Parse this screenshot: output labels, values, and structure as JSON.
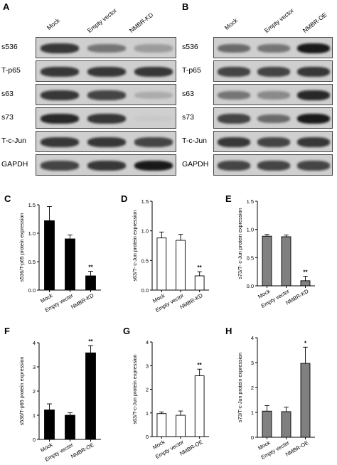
{
  "panels_top": {
    "A": {
      "letter": "A",
      "lanes": [
        "Mock",
        "Empty vector",
        "NMBR-KD"
      ],
      "rows": [
        {
          "label": "s536",
          "bands": [
            0.85,
            0.6,
            0.4
          ]
        },
        {
          "label": "T-p65",
          "bands": [
            0.85,
            0.85,
            0.85
          ]
        },
        {
          "label": "s63",
          "bands": [
            0.85,
            0.8,
            0.3
          ]
        },
        {
          "label": "s73",
          "bands": [
            0.9,
            0.85,
            0.05
          ]
        },
        {
          "label": "T-c-Jun",
          "bands": [
            0.85,
            0.85,
            0.8
          ]
        },
        {
          "label": "GAPDH",
          "bands": [
            0.8,
            0.85,
            0.95
          ]
        }
      ]
    },
    "B": {
      "letter": "B",
      "lanes": [
        "Mock",
        "Empty vector",
        "NMBR-OE"
      ],
      "rows": [
        {
          "label": "s536",
          "bands": [
            0.65,
            0.6,
            0.95
          ]
        },
        {
          "label": "T-p65",
          "bands": [
            0.8,
            0.8,
            0.85
          ]
        },
        {
          "label": "s63",
          "bands": [
            0.6,
            0.5,
            0.9
          ]
        },
        {
          "label": "s73",
          "bands": [
            0.8,
            0.65,
            0.95
          ]
        },
        {
          "label": "T-c-Jun",
          "bands": [
            0.85,
            0.8,
            0.85
          ]
        },
        {
          "label": "GAPDH",
          "bands": [
            0.8,
            0.8,
            0.8
          ]
        }
      ]
    }
  },
  "chart_data": [
    {
      "panel": "C",
      "type": "bar",
      "categories": [
        "Mock",
        "Empty vector",
        "NMBR-KD"
      ],
      "values": [
        1.22,
        0.9,
        0.25
      ],
      "errors": [
        0.25,
        0.07,
        0.08
      ],
      "sig": [
        "",
        "",
        "**"
      ],
      "ylabel": "s536/T-p65 protein expression",
      "ylim": [
        0,
        1.5
      ],
      "yticks": [
        "0.0",
        "0.5",
        "1.0",
        "1.5"
      ],
      "fill": "#000000"
    },
    {
      "panel": "D",
      "type": "bar",
      "categories": [
        "Mock",
        "Empty vector",
        "NMBR-KD"
      ],
      "values": [
        0.88,
        0.84,
        0.24
      ],
      "errors": [
        0.1,
        0.1,
        0.07
      ],
      "sig": [
        "",
        "",
        "**"
      ],
      "ylabel": "s63/T- c-Jun protein expression",
      "ylim": [
        0,
        1.5
      ],
      "yticks": [
        "0.0",
        "0.5",
        "1.0",
        "1.5"
      ],
      "fill": "#ffffff"
    },
    {
      "panel": "E",
      "type": "bar",
      "categories": [
        "Mock",
        "Empty vector",
        "NMBR-KD"
      ],
      "values": [
        0.88,
        0.87,
        0.09
      ],
      "errors": [
        0.03,
        0.03,
        0.08
      ],
      "sig": [
        "",
        "",
        "**"
      ],
      "ylabel": "s73/T- c-Jun protein expression",
      "ylim": [
        0,
        1.5
      ],
      "yticks": [
        "0.0",
        "0.5",
        "1.0",
        "1.5"
      ],
      "fill": "#808080"
    },
    {
      "panel": "F",
      "type": "bar",
      "categories": [
        "Mock",
        "Empty vector",
        "NMBR-OE"
      ],
      "values": [
        1.22,
        1.0,
        3.58
      ],
      "errors": [
        0.25,
        0.1,
        0.3
      ],
      "sig": [
        "",
        "",
        "**"
      ],
      "ylabel": "s536/T-p65 protein expression",
      "ylim": [
        0,
        4
      ],
      "yticks": [
        "0",
        "1",
        "2",
        "3",
        "4"
      ],
      "fill": "#000000"
    },
    {
      "panel": "G",
      "type": "bar",
      "categories": [
        "Mock",
        "Empty vector",
        "NMBR-OE"
      ],
      "values": [
        0.97,
        0.9,
        2.57
      ],
      "errors": [
        0.07,
        0.18,
        0.28
      ],
      "sig": [
        "",
        "",
        "**"
      ],
      "ylabel": "s63/T-c-Jun protein expression",
      "ylim": [
        0,
        4
      ],
      "yticks": [
        "0",
        "1",
        "2",
        "3",
        "4"
      ],
      "fill": "#ffffff"
    },
    {
      "panel": "H",
      "type": "bar",
      "categories": [
        "Mock",
        "Empty vector",
        "NMBR-OE"
      ],
      "values": [
        1.05,
        1.03,
        2.97
      ],
      "errors": [
        0.22,
        0.18,
        0.65
      ],
      "sig": [
        "",
        "",
        "*"
      ],
      "ylabel": "s73/T-c-Jun protein expression",
      "ylim": [
        0,
        4
      ],
      "yticks": [
        "0",
        "1",
        "2",
        "3",
        "4"
      ],
      "fill": "#808080"
    }
  ]
}
